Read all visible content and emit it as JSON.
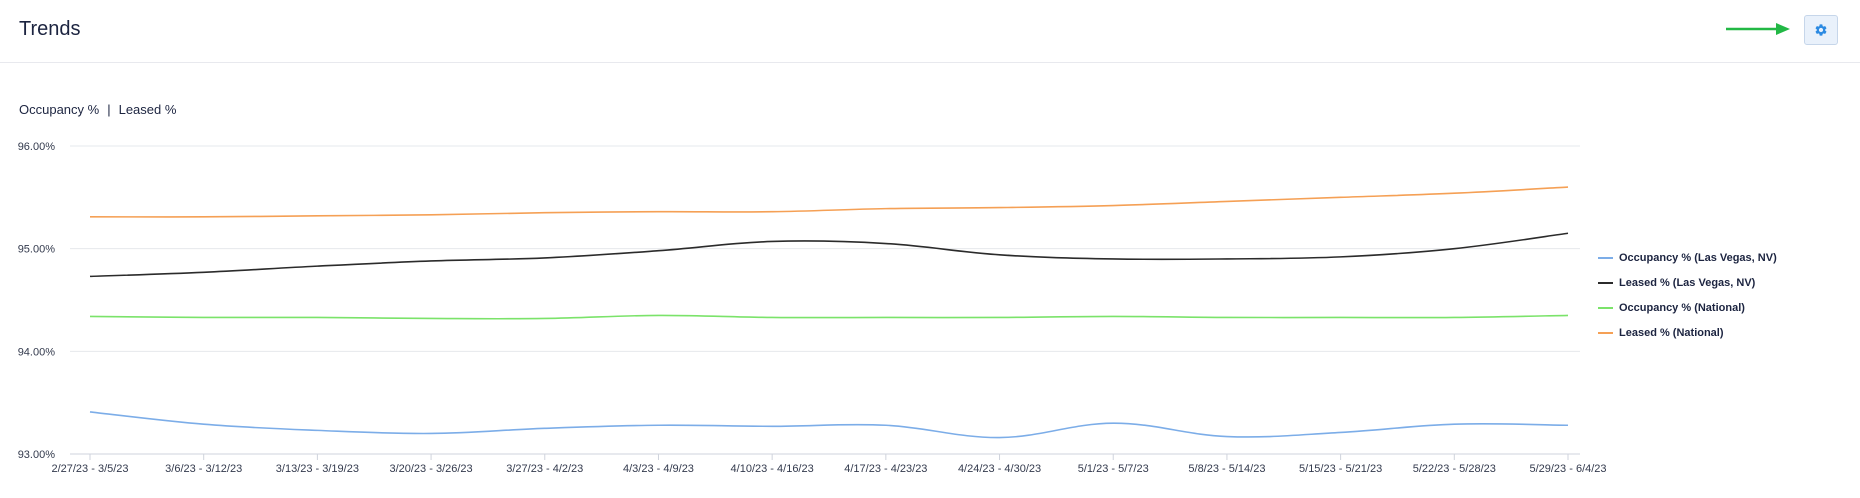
{
  "header": {
    "title": "Trends",
    "settings_icon": "gear-icon",
    "arrow_color": "#22b845"
  },
  "toggle": {
    "occupancy_label": "Occupancy %",
    "separator": "|",
    "leased_label": "Leased %"
  },
  "chart_data": {
    "type": "line",
    "title": "",
    "xlabel": "",
    "ylabel": "",
    "ylim": [
      93.0,
      96.0
    ],
    "yticks": [
      "96.00%",
      "95.00%",
      "94.00%",
      "93.00%"
    ],
    "ytick_values": [
      96.0,
      95.0,
      94.0,
      93.0
    ],
    "grid": true,
    "legend_position": "right",
    "categories": [
      "2/27/23 - 3/5/23",
      "3/6/23 - 3/12/23",
      "3/13/23 - 3/19/23",
      "3/20/23 - 3/26/23",
      "3/27/23 - 4/2/23",
      "4/3/23 - 4/9/23",
      "4/10/23 - 4/16/23",
      "4/17/23 - 4/23/23",
      "4/24/23 - 4/30/23",
      "5/1/23 - 5/7/23",
      "5/8/23 - 5/14/23",
      "5/15/23 - 5/21/23",
      "5/22/23 - 5/28/23",
      "5/29/23 - 6/4/23"
    ],
    "series": [
      {
        "name": "Occupancy % (Las Vegas, NV)",
        "color": "#7cade8",
        "values": [
          93.41,
          93.29,
          93.23,
          93.2,
          93.25,
          93.28,
          93.27,
          93.28,
          93.16,
          93.3,
          93.17,
          93.21,
          93.29,
          93.28
        ]
      },
      {
        "name": "Leased % (Las Vegas, NV)",
        "color": "#2b2b2b",
        "values": [
          94.73,
          94.77,
          94.83,
          94.88,
          94.91,
          94.98,
          95.07,
          95.05,
          94.94,
          94.9,
          94.9,
          94.92,
          95.0,
          95.15
        ]
      },
      {
        "name": "Occupancy % (National)",
        "color": "#7be36a",
        "values": [
          94.34,
          94.33,
          94.33,
          94.32,
          94.32,
          94.35,
          94.33,
          94.33,
          94.33,
          94.34,
          94.33,
          94.33,
          94.33,
          94.35
        ]
      },
      {
        "name": "Leased % (National)",
        "color": "#f5a055",
        "values": [
          95.31,
          95.31,
          95.32,
          95.33,
          95.35,
          95.36,
          95.36,
          95.39,
          95.4,
          95.42,
          95.46,
          95.5,
          95.54,
          95.6
        ]
      }
    ]
  }
}
